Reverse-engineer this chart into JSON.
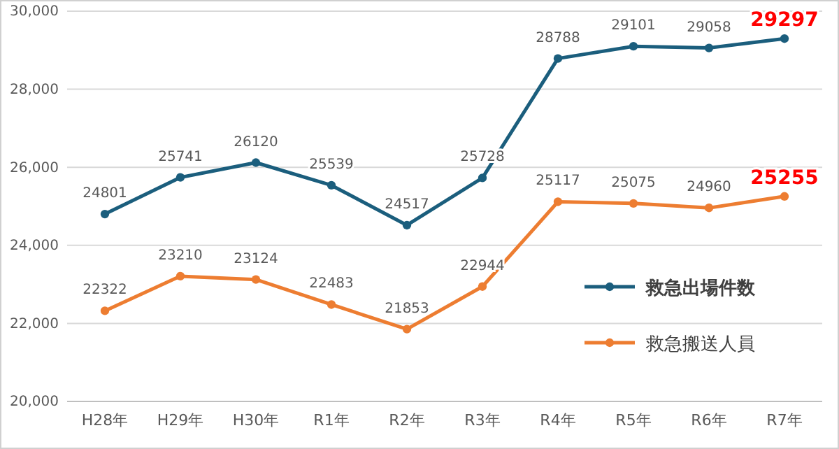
{
  "chart_data": {
    "type": "line",
    "categories": [
      "H28年",
      "H29年",
      "H30年",
      "R1年",
      "R2年",
      "R3年",
      "R4年",
      "R5年",
      "R6年",
      "R7年"
    ],
    "series": [
      {
        "name": "救急出場件数",
        "color": "#1b5e7d",
        "values": [
          24801,
          25741,
          26120,
          25539,
          24517,
          25728,
          28788,
          29101,
          29058,
          29297
        ]
      },
      {
        "name": "救急搬送人員",
        "color": "#ed7d31",
        "values": [
          22322,
          23210,
          23124,
          22483,
          21853,
          22944,
          25117,
          25075,
          24960,
          25255
        ]
      }
    ],
    "ylim": [
      20000,
      30000
    ],
    "yticks": [
      {
        "value": 20000,
        "label": "20,000"
      },
      {
        "value": 22000,
        "label": "22,000"
      },
      {
        "value": 24000,
        "label": "24,000"
      },
      {
        "value": 26000,
        "label": "26,000"
      },
      {
        "value": 28000,
        "label": "28,000"
      },
      {
        "value": 30000,
        "label": "30,000"
      }
    ],
    "grid": "y",
    "legend": "bottom right",
    "marker": "circle",
    "line_style": "solid",
    "data_labels": true
  }
}
